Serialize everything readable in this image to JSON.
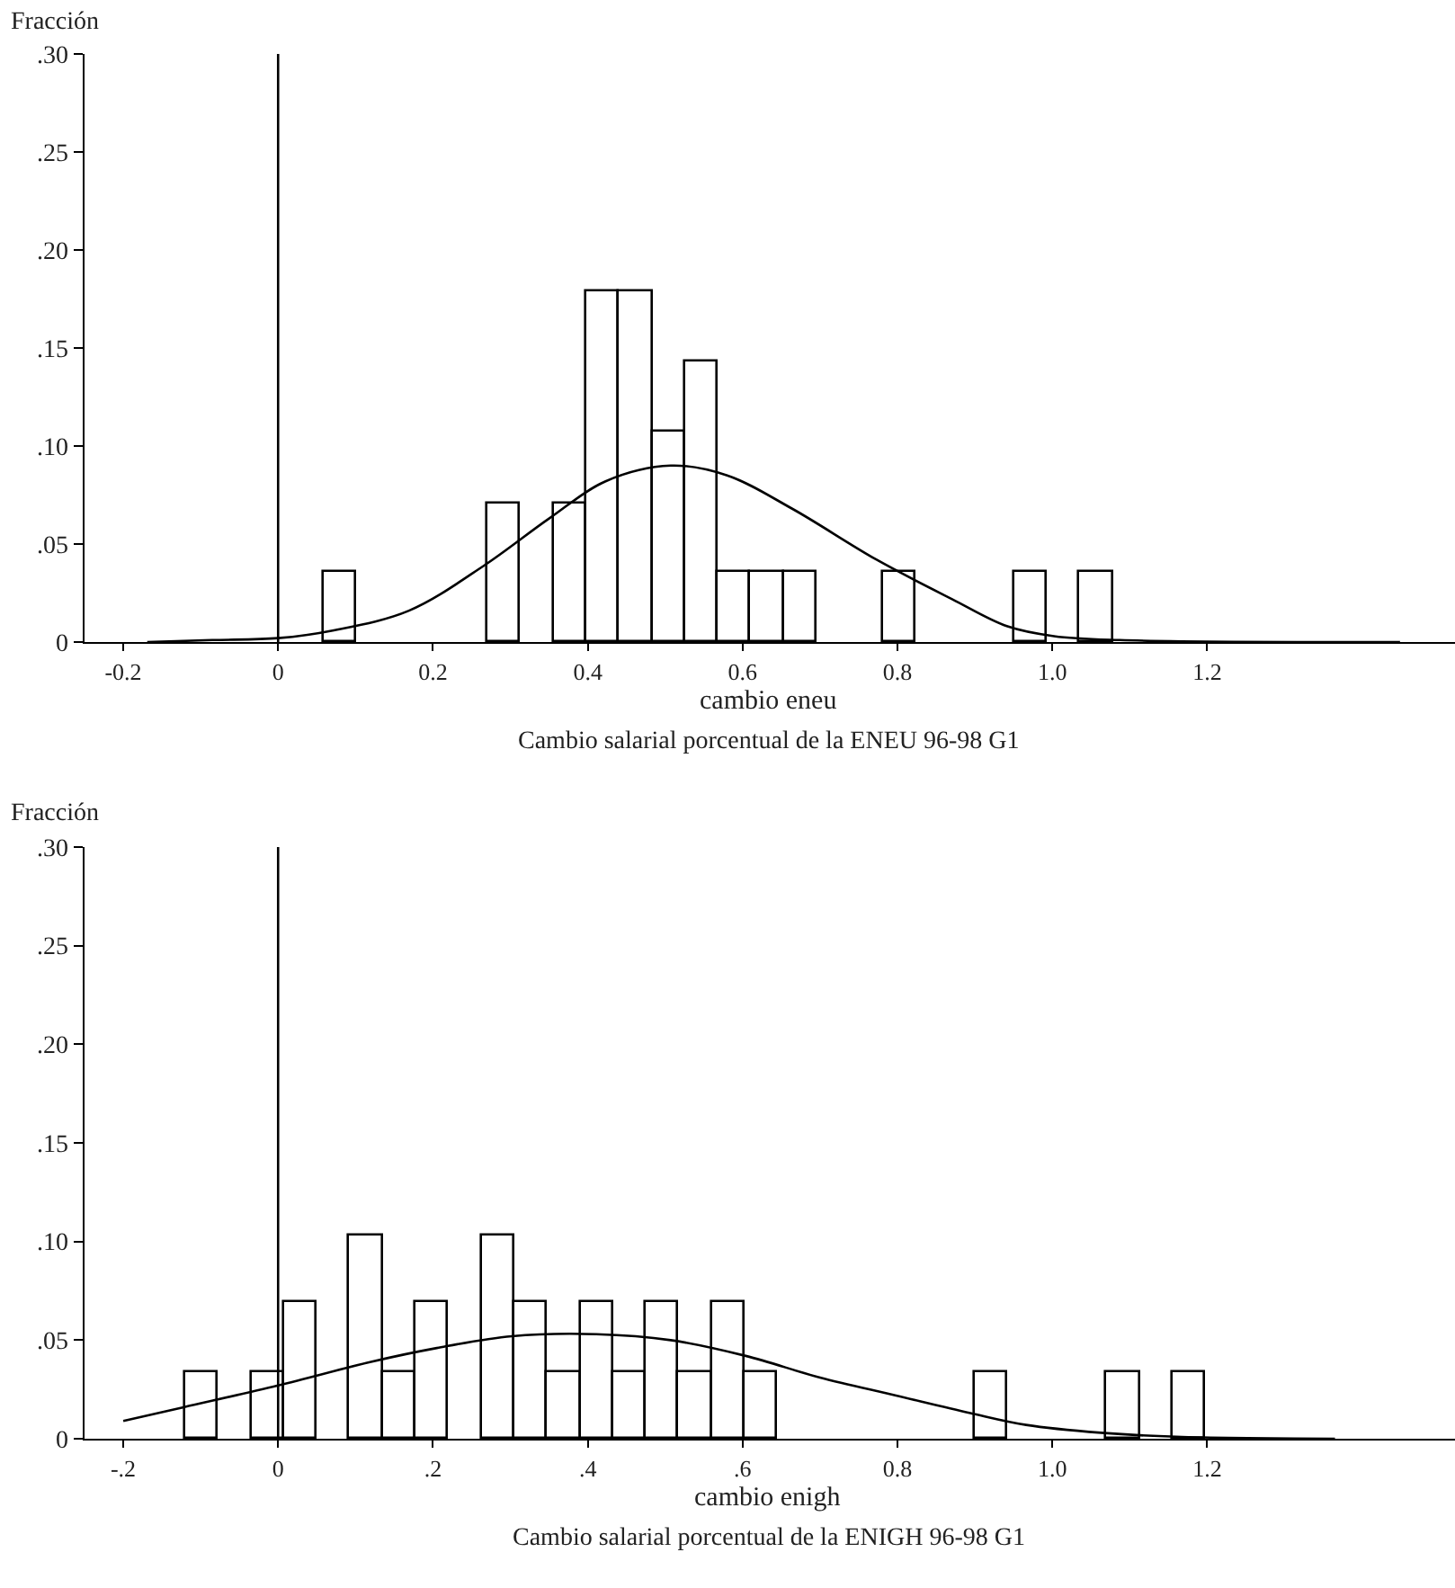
{
  "chart_data": [
    {
      "type": "histogram",
      "title": "Cambio salarial porcentual de la ENEU 96-98 G1",
      "xlabel": "cambio eneu",
      "ylabel": "Fracción",
      "color": "#ffffff",
      "bins": [
        0.058,
        0.1005,
        0.143,
        0.1855,
        0.228,
        0.2705,
        0.313,
        0.3555,
        0.398,
        0.4405,
        0.483,
        0.5255,
        0.568,
        0.6105,
        0.653,
        0.6955,
        0.738,
        0.7805,
        0.823,
        0.8655,
        0.908,
        0.9505,
        0.993,
        1.0355,
        1.078
      ],
      "values": [
        0.036,
        0,
        0,
        0,
        0,
        0.071,
        0,
        0.071,
        0.179,
        0.179,
        0.107,
        0.143,
        0.036,
        0.036,
        0.036,
        0,
        0,
        0.036,
        0,
        0,
        0,
        0.036,
        0,
        0.036
      ],
      "series": [
        {
          "type": "line",
          "color": "#000000",
          "x": [
            -0.169,
            -0.085,
            0,
            0.072,
            0.169,
            0.266,
            0.35,
            0.423,
            0.507,
            0.58,
            0.664,
            0.773,
            0.87,
            0.942,
            1.002,
            1.087,
            1.449
          ],
          "values": [
            0,
            0.001,
            0.002,
            0.006,
            0.016,
            0.039,
            0.063,
            0.082,
            0.09,
            0.085,
            0.068,
            0.042,
            0.022,
            0.008,
            0.003,
            0.001,
            0
          ]
        }
      ],
      "xlim": [
        -0.25,
        1.52
      ],
      "xticks": [
        -0.2,
        0,
        0.2,
        0.4,
        0.6,
        0.8,
        {
          "value": 1,
          "label": "1.0"
        },
        1.2
      ],
      "ylim": [
        0,
        0.3
      ],
      "yticks": [
        0,
        {
          "value": 0.05,
          "label": ".05"
        },
        {
          "value": 0.1,
          "label": ".10"
        },
        {
          "value": 0.15,
          "label": ".15"
        },
        {
          "value": 0.2,
          "label": ".20"
        },
        {
          "value": 0.25,
          "label": ".25"
        },
        {
          "value": 0.3,
          "label": ".30"
        }
      ],
      "ref_lines": [
        {
          "axis": "x",
          "value": 0,
          "color": "#000000"
        }
      ]
    },
    {
      "type": "histogram",
      "title": "Cambio salarial porcentual de la ENIGH 96-98 G1",
      "xlabel": "cambio enigh",
      "ylabel": "Fracción",
      "color": "#ffffff",
      "bins": [
        -0.12,
        -0.0775,
        -0.035,
        0.0075,
        0.05,
        0.0925,
        0.135,
        0.1775,
        0.22,
        0.2625,
        0.305,
        0.3475,
        0.39,
        0.4325,
        0.475,
        0.5175,
        0.56,
        0.6025,
        0.645,
        0.6875,
        0.73,
        0.7725,
        0.815,
        0.8575,
        0.9,
        0.9425,
        0.985,
        1.0275,
        1.07,
        1.1125,
        1.155,
        1.1975
      ],
      "values": [
        0.034,
        0,
        0.034,
        0.069,
        0,
        0.103,
        0.034,
        0.069,
        0,
        0.103,
        0.069,
        0.034,
        0.069,
        0.034,
        0.069,
        0.034,
        0.069,
        0.034,
        0,
        0,
        0,
        0,
        0,
        0,
        0.034,
        0,
        0,
        0,
        0.034,
        0,
        0.034
      ],
      "series": [
        {
          "type": "line",
          "color": "#000000",
          "x": [
            -0.2,
            -0.122,
            0,
            0.12,
            0.205,
            0.302,
            0.411,
            0.507,
            0.604,
            0.7,
            0.797,
            0.894,
            0.966,
            1.063,
            1.16,
            1.365
          ],
          "values": [
            0.009,
            0.016,
            0.027,
            0.039,
            0.046,
            0.052,
            0.053,
            0.05,
            0.042,
            0.031,
            0.022,
            0.013,
            0.007,
            0.003,
            0.001,
            0
          ]
        }
      ],
      "xlim": [
        -0.25,
        1.52
      ],
      "xticks": [
        {
          "value": -0.2,
          "label": "-.2"
        },
        0,
        {
          "value": 0.2,
          "label": ".2"
        },
        {
          "value": 0.4,
          "label": ".4"
        },
        {
          "value": 0.6,
          "label": ".6"
        },
        0.8,
        {
          "value": 1,
          "label": "1.0"
        },
        1.2
      ],
      "ylim": [
        0,
        0.3
      ],
      "yticks": [
        0,
        {
          "value": 0.05,
          "label": ".05"
        },
        {
          "value": 0.1,
          "label": ".10"
        },
        {
          "value": 0.15,
          "label": ".15"
        },
        {
          "value": 0.2,
          "label": ".20"
        },
        {
          "value": 0.25,
          "label": ".25"
        },
        {
          "value": 0.3,
          "label": ".30"
        }
      ],
      "ref_lines": [
        {
          "axis": "x",
          "value": 0,
          "color": "#000000"
        }
      ]
    }
  ]
}
